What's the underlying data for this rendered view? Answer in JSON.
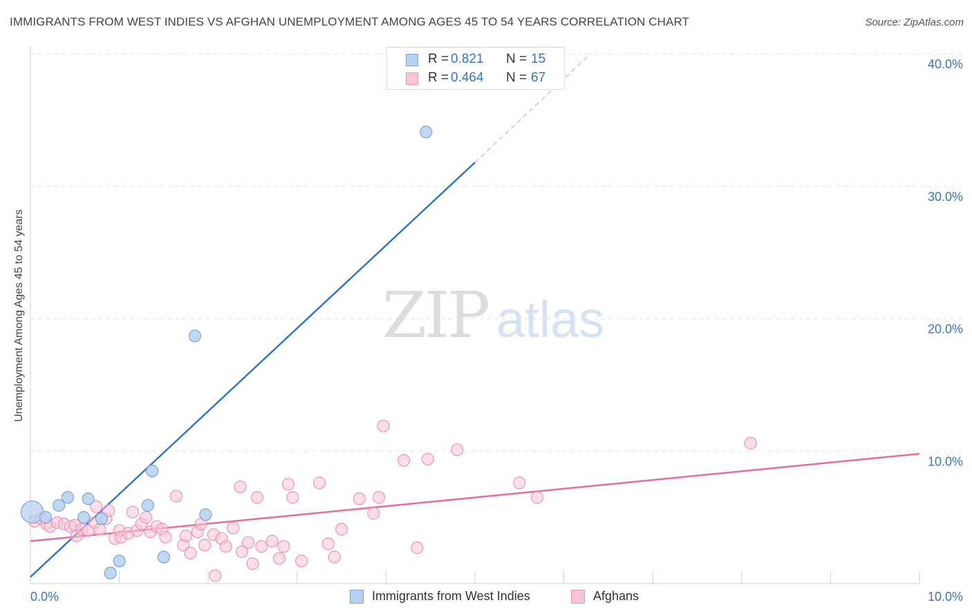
{
  "header": {
    "title": "IMMIGRANTS FROM WEST INDIES VS AFGHAN UNEMPLOYMENT AMONG AGES 45 TO 54 YEARS CORRELATION CHART",
    "source": "Source: ZipAtlas.com"
  },
  "watermark": {
    "zip": "ZIP",
    "atlas": "atlas"
  },
  "legend": {
    "rows": [
      {
        "r_label": "R =",
        "r_value": "0.821",
        "n_label": "N =",
        "n_value": "15"
      },
      {
        "r_label": "R =",
        "r_value": "0.464",
        "n_label": "N =",
        "n_value": "67"
      }
    ]
  },
  "bottom_legend": {
    "series1": "Immigrants from West Indies",
    "series2": "Afghans"
  },
  "colors": {
    "blue_fill": "#b7d0f0",
    "blue_stroke": "#7aa3d6",
    "blue_line": "#2f74d0",
    "pink_fill": "#f8c4d5",
    "pink_stroke": "#ec93b1",
    "pink_line": "#e86a97",
    "tick_label": "#3a72c4",
    "grid": "#e3e3e3"
  },
  "chart_data": {
    "type": "scatter",
    "title": "IMMIGRANTS FROM WEST INDIES VS AFGHAN UNEMPLOYMENT AMONG AGES 45 TO 54 YEARS CORRELATION CHART",
    "xlabel": "",
    "ylabel": "Unemployment Among Ages 45 to 54 years",
    "xlim": [
      0,
      10
    ],
    "ylim": [
      0,
      40
    ],
    "x_tick_labels": [
      "0.0%",
      "10.0%"
    ],
    "y_ticks": [
      10,
      20,
      30,
      40
    ],
    "y_tick_labels": [
      "10.0%",
      "20.0%",
      "30.0%",
      "40.0%"
    ],
    "grid": true,
    "series": [
      {
        "name": "Immigrants from West Indies",
        "color": "#b7d0f0",
        "points": [
          [
            0.02,
            5.4
          ],
          [
            0.17,
            5.0
          ],
          [
            0.32,
            5.9
          ],
          [
            0.42,
            6.5
          ],
          [
            0.6,
            5.0
          ],
          [
            0.65,
            6.4
          ],
          [
            0.8,
            4.9
          ],
          [
            0.9,
            0.8
          ],
          [
            1.0,
            1.7
          ],
          [
            1.37,
            8.5
          ],
          [
            1.32,
            5.9
          ],
          [
            1.5,
            2.0
          ],
          [
            1.85,
            18.7
          ],
          [
            1.97,
            5.2
          ],
          [
            4.45,
            34.1
          ]
        ],
        "trend": {
          "x": [
            0.0,
            5.0
          ],
          "y": [
            0.5,
            31.8
          ],
          "dashed_extension": {
            "x": [
              5.0,
              6.3
            ],
            "y": [
              31.8,
              40.0
            ]
          }
        }
      },
      {
        "name": "Afghans",
        "color": "#f8c4d5",
        "points": [
          [
            0.05,
            4.7
          ],
          [
            0.12,
            4.9
          ],
          [
            0.18,
            4.5
          ],
          [
            0.22,
            4.3
          ],
          [
            0.3,
            4.6
          ],
          [
            0.38,
            4.5
          ],
          [
            0.45,
            4.3
          ],
          [
            0.5,
            4.4
          ],
          [
            0.52,
            3.6
          ],
          [
            0.58,
            4.1
          ],
          [
            0.65,
            4.0
          ],
          [
            0.72,
            4.6
          ],
          [
            0.74,
            5.8
          ],
          [
            0.78,
            4.1
          ],
          [
            0.85,
            4.9
          ],
          [
            0.88,
            5.5
          ],
          [
            0.95,
            3.4
          ],
          [
            1.0,
            4.0
          ],
          [
            1.02,
            3.5
          ],
          [
            1.1,
            3.8
          ],
          [
            1.15,
            5.4
          ],
          [
            1.2,
            4.0
          ],
          [
            1.25,
            4.5
          ],
          [
            1.3,
            5.0
          ],
          [
            1.35,
            3.9
          ],
          [
            1.42,
            4.3
          ],
          [
            1.48,
            4.1
          ],
          [
            1.52,
            3.5
          ],
          [
            1.64,
            6.6
          ],
          [
            1.72,
            2.9
          ],
          [
            1.75,
            3.6
          ],
          [
            1.8,
            2.3
          ],
          [
            1.88,
            3.9
          ],
          [
            1.92,
            4.5
          ],
          [
            1.96,
            2.9
          ],
          [
            2.06,
            3.7
          ],
          [
            2.08,
            0.6
          ],
          [
            2.15,
            3.4
          ],
          [
            2.2,
            2.8
          ],
          [
            2.28,
            4.2
          ],
          [
            2.36,
            7.3
          ],
          [
            2.38,
            2.4
          ],
          [
            2.45,
            3.1
          ],
          [
            2.5,
            1.5
          ],
          [
            2.55,
            6.5
          ],
          [
            2.6,
            2.8
          ],
          [
            2.72,
            3.2
          ],
          [
            2.8,
            1.9
          ],
          [
            2.85,
            2.8
          ],
          [
            2.9,
            7.5
          ],
          [
            2.95,
            6.5
          ],
          [
            3.05,
            1.7
          ],
          [
            3.25,
            7.6
          ],
          [
            3.35,
            3.0
          ],
          [
            3.42,
            2.0
          ],
          [
            3.5,
            4.1
          ],
          [
            3.7,
            6.4
          ],
          [
            3.86,
            5.3
          ],
          [
            3.92,
            6.5
          ],
          [
            3.97,
            11.9
          ],
          [
            4.2,
            9.3
          ],
          [
            4.35,
            2.7
          ],
          [
            4.47,
            9.4
          ],
          [
            4.8,
            10.1
          ],
          [
            5.5,
            7.6
          ],
          [
            5.7,
            6.5
          ],
          [
            8.1,
            10.6
          ]
        ],
        "trend": {
          "x": [
            0.0,
            10.0
          ],
          "y": [
            3.2,
            9.8
          ]
        }
      }
    ]
  }
}
